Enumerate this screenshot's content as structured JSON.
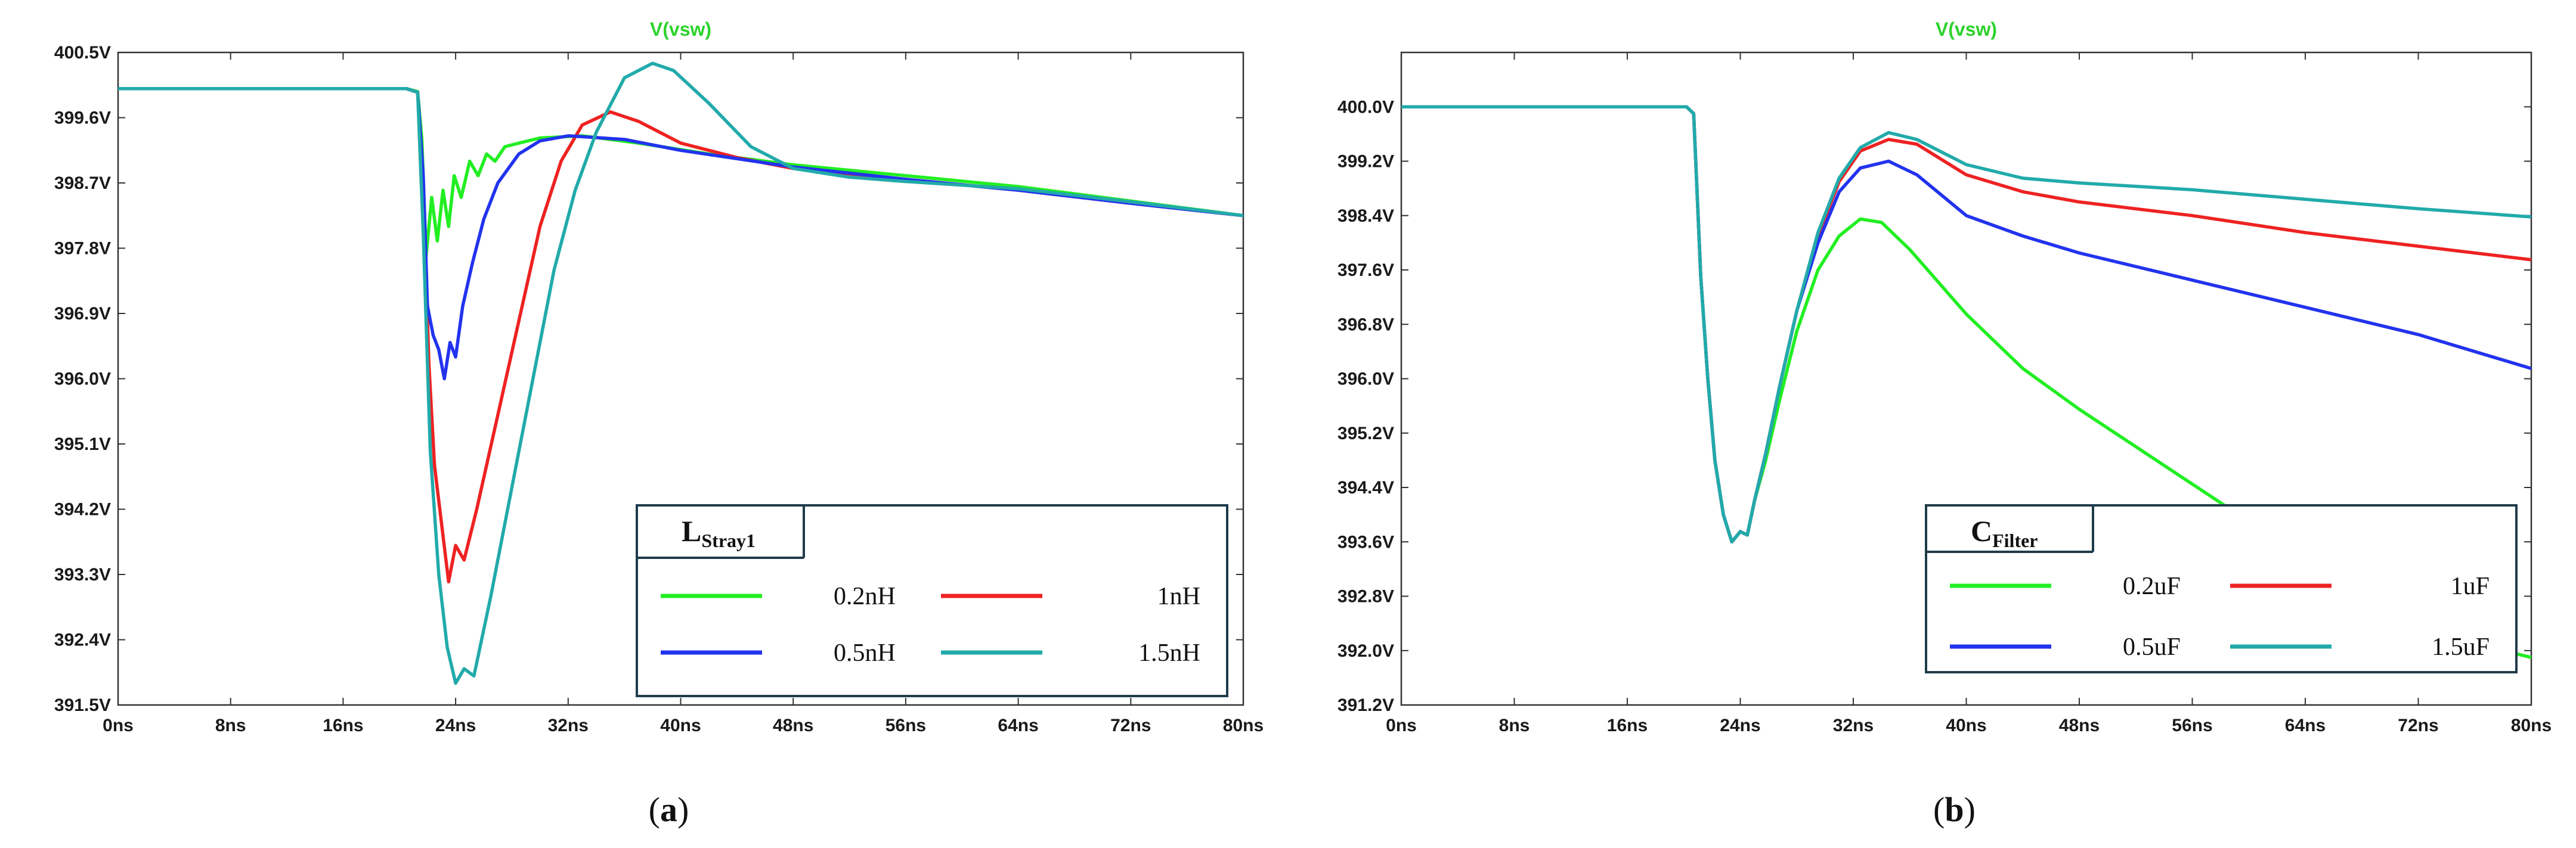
{
  "chart_data": [
    {
      "type": "line",
      "title": "V(vsw)",
      "caption": {
        "open": "(",
        "letter": "a",
        "close": ")"
      },
      "xlabel": "",
      "ylabel": "",
      "xlim": [
        0,
        80
      ],
      "ylim": [
        391.5,
        400.5
      ],
      "x_ticks": [
        "0ns",
        "8ns",
        "16ns",
        "24ns",
        "32ns",
        "40ns",
        "48ns",
        "56ns",
        "64ns",
        "72ns",
        "80ns"
      ],
      "y_ticks": [
        "400.5V",
        "399.6V",
        "398.7V",
        "397.8V",
        "396.9V",
        "396.0V",
        "395.1V",
        "394.2V",
        "393.3V",
        "392.4V",
        "391.5V"
      ],
      "legend": {
        "title_main": "L",
        "title_sub": "Stray1",
        "placement": "bottom-right"
      },
      "series": [
        {
          "name": "0.2nH",
          "color": "#22ee22",
          "points": [
            [
              0,
              400
            ],
            [
              20.5,
              400
            ],
            [
              21.3,
              399.96
            ],
            [
              21.6,
              399.3
            ],
            [
              21.9,
              397.7
            ],
            [
              22.3,
              398.5
            ],
            [
              22.7,
              397.9
            ],
            [
              23.1,
              398.6
            ],
            [
              23.5,
              398.1
            ],
            [
              23.9,
              398.8
            ],
            [
              24.4,
              398.5
            ],
            [
              25,
              399.0
            ],
            [
              25.6,
              398.8
            ],
            [
              26.2,
              399.1
            ],
            [
              26.8,
              399.0
            ],
            [
              27.5,
              399.2
            ],
            [
              28.5,
              399.25
            ],
            [
              30,
              399.32
            ],
            [
              33,
              399.35
            ],
            [
              37,
              399.25
            ],
            [
              42,
              399.1
            ],
            [
              48,
              398.95
            ],
            [
              56,
              398.8
            ],
            [
              64,
              398.65
            ],
            [
              72,
              398.45
            ],
            [
              80,
              398.25
            ]
          ]
        },
        {
          "name": "1nH",
          "color": "#ee2222",
          "points": [
            [
              0,
              400
            ],
            [
              20.5,
              400
            ],
            [
              21.3,
              399.95
            ],
            [
              21.7,
              398.5
            ],
            [
              22.1,
              396.2
            ],
            [
              22.5,
              394.8
            ],
            [
              23,
              394.0
            ],
            [
              23.5,
              393.2
            ],
            [
              24,
              393.7
            ],
            [
              24.6,
              393.5
            ],
            [
              25.5,
              394.2
            ],
            [
              27,
              395.5
            ],
            [
              28.5,
              396.8
            ],
            [
              30,
              398.1
            ],
            [
              31.5,
              399.0
            ],
            [
              33,
              399.5
            ],
            [
              35,
              399.68
            ],
            [
              37,
              399.55
            ],
            [
              40,
              399.25
            ],
            [
              44,
              399.05
            ],
            [
              48,
              398.9
            ],
            [
              56,
              398.75
            ],
            [
              64,
              398.6
            ],
            [
              72,
              398.42
            ],
            [
              80,
              398.25
            ]
          ]
        },
        {
          "name": "0.5nH",
          "color": "#2233ee",
          "points": [
            [
              0,
              400
            ],
            [
              20.5,
              400
            ],
            [
              21.3,
              399.95
            ],
            [
              21.7,
              398.8
            ],
            [
              22,
              397.0
            ],
            [
              22.4,
              396.6
            ],
            [
              22.8,
              396.4
            ],
            [
              23.2,
              396.0
            ],
            [
              23.6,
              396.5
            ],
            [
              24,
              396.3
            ],
            [
              24.5,
              397.0
            ],
            [
              25.2,
              397.6
            ],
            [
              26,
              398.2
            ],
            [
              27,
              398.7
            ],
            [
              28.5,
              399.1
            ],
            [
              30,
              399.28
            ],
            [
              32,
              399.35
            ],
            [
              36,
              399.3
            ],
            [
              40,
              399.15
            ],
            [
              48,
              398.92
            ],
            [
              56,
              398.75
            ],
            [
              64,
              398.6
            ],
            [
              72,
              398.42
            ],
            [
              80,
              398.25
            ]
          ]
        },
        {
          "name": "1.5nH",
          "color": "#22aaaa",
          "points": [
            [
              0,
              400
            ],
            [
              20.5,
              400
            ],
            [
              21.3,
              399.95
            ],
            [
              21.7,
              398.0
            ],
            [
              22.2,
              395.0
            ],
            [
              22.8,
              393.3
            ],
            [
              23.4,
              392.3
            ],
            [
              24,
              391.8
            ],
            [
              24.6,
              392.0
            ],
            [
              25.3,
              391.9
            ],
            [
              26.5,
              393.0
            ],
            [
              28,
              394.5
            ],
            [
              29.5,
              396.0
            ],
            [
              31,
              397.5
            ],
            [
              32.5,
              398.6
            ],
            [
              34,
              399.4
            ],
            [
              36,
              400.15
            ],
            [
              38,
              400.35
            ],
            [
              39.5,
              400.25
            ],
            [
              42,
              399.8
            ],
            [
              45,
              399.2
            ],
            [
              48,
              398.9
            ],
            [
              52,
              398.78
            ],
            [
              56,
              398.72
            ],
            [
              64,
              398.62
            ],
            [
              72,
              398.44
            ],
            [
              80,
              398.25
            ]
          ]
        }
      ]
    },
    {
      "type": "line",
      "title": "V(vsw)",
      "caption": {
        "open": "(",
        "letter": "b",
        "close": ")"
      },
      "xlabel": "",
      "ylabel": "",
      "xlim": [
        0,
        80
      ],
      "ylim": [
        391.2,
        400.8
      ],
      "x_ticks": [
        "0ns",
        "8ns",
        "16ns",
        "24ns",
        "32ns",
        "40ns",
        "48ns",
        "56ns",
        "64ns",
        "72ns",
        "80ns"
      ],
      "y_ticks": [
        "400.0V",
        "399.2V",
        "398.4V",
        "397.6V",
        "396.8V",
        "396.0V",
        "395.2V",
        "394.4V",
        "393.6V",
        "392.8V",
        "392.0V",
        "391.2V"
      ],
      "legend": {
        "title_main": "C",
        "title_sub": "Filter",
        "placement": "bottom-right"
      },
      "series": [
        {
          "name": "0.2uF",
          "color": "#22ee22",
          "points": [
            [
              0,
              400
            ],
            [
              20.2,
              400
            ],
            [
              20.7,
              399.9
            ],
            [
              21.2,
              397.5
            ],
            [
              21.7,
              396.0
            ],
            [
              22.2,
              394.8
            ],
            [
              22.8,
              394.0
            ],
            [
              23.4,
              393.6
            ],
            [
              24,
              393.75
            ],
            [
              24.5,
              393.7
            ],
            [
              25,
              394.2
            ],
            [
              25.8,
              394.8
            ],
            [
              26.8,
              395.7
            ],
            [
              28,
              396.7
            ],
            [
              29.5,
              397.6
            ],
            [
              31,
              398.1
            ],
            [
              32.5,
              398.35
            ],
            [
              34,
              398.3
            ],
            [
              36,
              397.9
            ],
            [
              40,
              396.95
            ],
            [
              44,
              396.15
            ],
            [
              48,
              395.55
            ],
            [
              52,
              395.0
            ],
            [
              56,
              394.45
            ],
            [
              60,
              393.9
            ],
            [
              64,
              393.35
            ],
            [
              68,
              392.85
            ],
            [
              72,
              392.4
            ],
            [
              76,
              392.1
            ],
            [
              80,
              391.9
            ]
          ]
        },
        {
          "name": "1uF",
          "color": "#ee2222",
          "points": [
            [
              0,
              400
            ],
            [
              20.2,
              400
            ],
            [
              20.7,
              399.9
            ],
            [
              21.2,
              397.5
            ],
            [
              21.7,
              396.0
            ],
            [
              22.2,
              394.8
            ],
            [
              22.8,
              394.0
            ],
            [
              23.4,
              393.6
            ],
            [
              24,
              393.75
            ],
            [
              24.5,
              393.7
            ],
            [
              25,
              394.2
            ],
            [
              25.8,
              394.9
            ],
            [
              26.8,
              395.9
            ],
            [
              28,
              397.0
            ],
            [
              29.5,
              398.1
            ],
            [
              31,
              398.9
            ],
            [
              32.5,
              399.35
            ],
            [
              34.5,
              399.52
            ],
            [
              36.5,
              399.45
            ],
            [
              40,
              399.0
            ],
            [
              44,
              398.75
            ],
            [
              48,
              398.6
            ],
            [
              56,
              398.4
            ],
            [
              64,
              398.15
            ],
            [
              72,
              397.95
            ],
            [
              80,
              397.75
            ]
          ]
        },
        {
          "name": "0.5uF",
          "color": "#2233ee",
          "points": [
            [
              0,
              400
            ],
            [
              20.2,
              400
            ],
            [
              20.7,
              399.9
            ],
            [
              21.2,
              397.5
            ],
            [
              21.7,
              396.0
            ],
            [
              22.2,
              394.8
            ],
            [
              22.8,
              394.0
            ],
            [
              23.4,
              393.6
            ],
            [
              24,
              393.75
            ],
            [
              24.5,
              393.7
            ],
            [
              25,
              394.2
            ],
            [
              25.8,
              394.9
            ],
            [
              26.8,
              395.9
            ],
            [
              28,
              397.0
            ],
            [
              29.5,
              398.0
            ],
            [
              31,
              398.75
            ],
            [
              32.5,
              399.1
            ],
            [
              34.5,
              399.2
            ],
            [
              36.5,
              399.0
            ],
            [
              40,
              398.4
            ],
            [
              44,
              398.1
            ],
            [
              48,
              397.85
            ],
            [
              56,
              397.45
            ],
            [
              64,
              397.05
            ],
            [
              72,
              396.65
            ],
            [
              80,
              396.15
            ]
          ]
        },
        {
          "name": "1.5uF",
          "color": "#22aaaa",
          "points": [
            [
              0,
              400
            ],
            [
              20.2,
              400
            ],
            [
              20.7,
              399.9
            ],
            [
              21.2,
              397.5
            ],
            [
              21.7,
              396.0
            ],
            [
              22.2,
              394.8
            ],
            [
              22.8,
              394.0
            ],
            [
              23.4,
              393.6
            ],
            [
              24,
              393.75
            ],
            [
              24.5,
              393.7
            ],
            [
              25,
              394.2
            ],
            [
              25.8,
              394.9
            ],
            [
              26.8,
              395.9
            ],
            [
              28,
              397.0
            ],
            [
              29.5,
              398.15
            ],
            [
              31,
              398.95
            ],
            [
              32.5,
              399.4
            ],
            [
              34.5,
              399.62
            ],
            [
              36.5,
              399.52
            ],
            [
              40,
              399.15
            ],
            [
              44,
              398.95
            ],
            [
              48,
              398.88
            ],
            [
              56,
              398.78
            ],
            [
              64,
              398.64
            ],
            [
              72,
              398.5
            ],
            [
              80,
              398.38
            ]
          ]
        }
      ]
    }
  ]
}
